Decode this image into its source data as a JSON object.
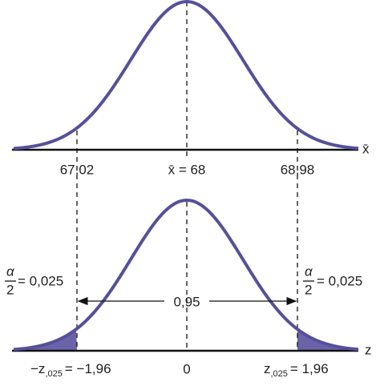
{
  "top": {
    "axis_label": "x̄",
    "left_label": "67,02",
    "center_label": "x̄ = 68",
    "right_label": "68,98"
  },
  "bottom": {
    "axis_label": "z",
    "alpha": "α",
    "two": "2",
    "alpha_value": "= 0,025",
    "middle_area": "0,95",
    "left_z": "−z",
    "left_sub": ",025",
    "left_value": "= −1,96",
    "center_label": "0",
    "right_z": "z",
    "right_sub": ",025",
    "right_value": "= 1,96"
  }
}
